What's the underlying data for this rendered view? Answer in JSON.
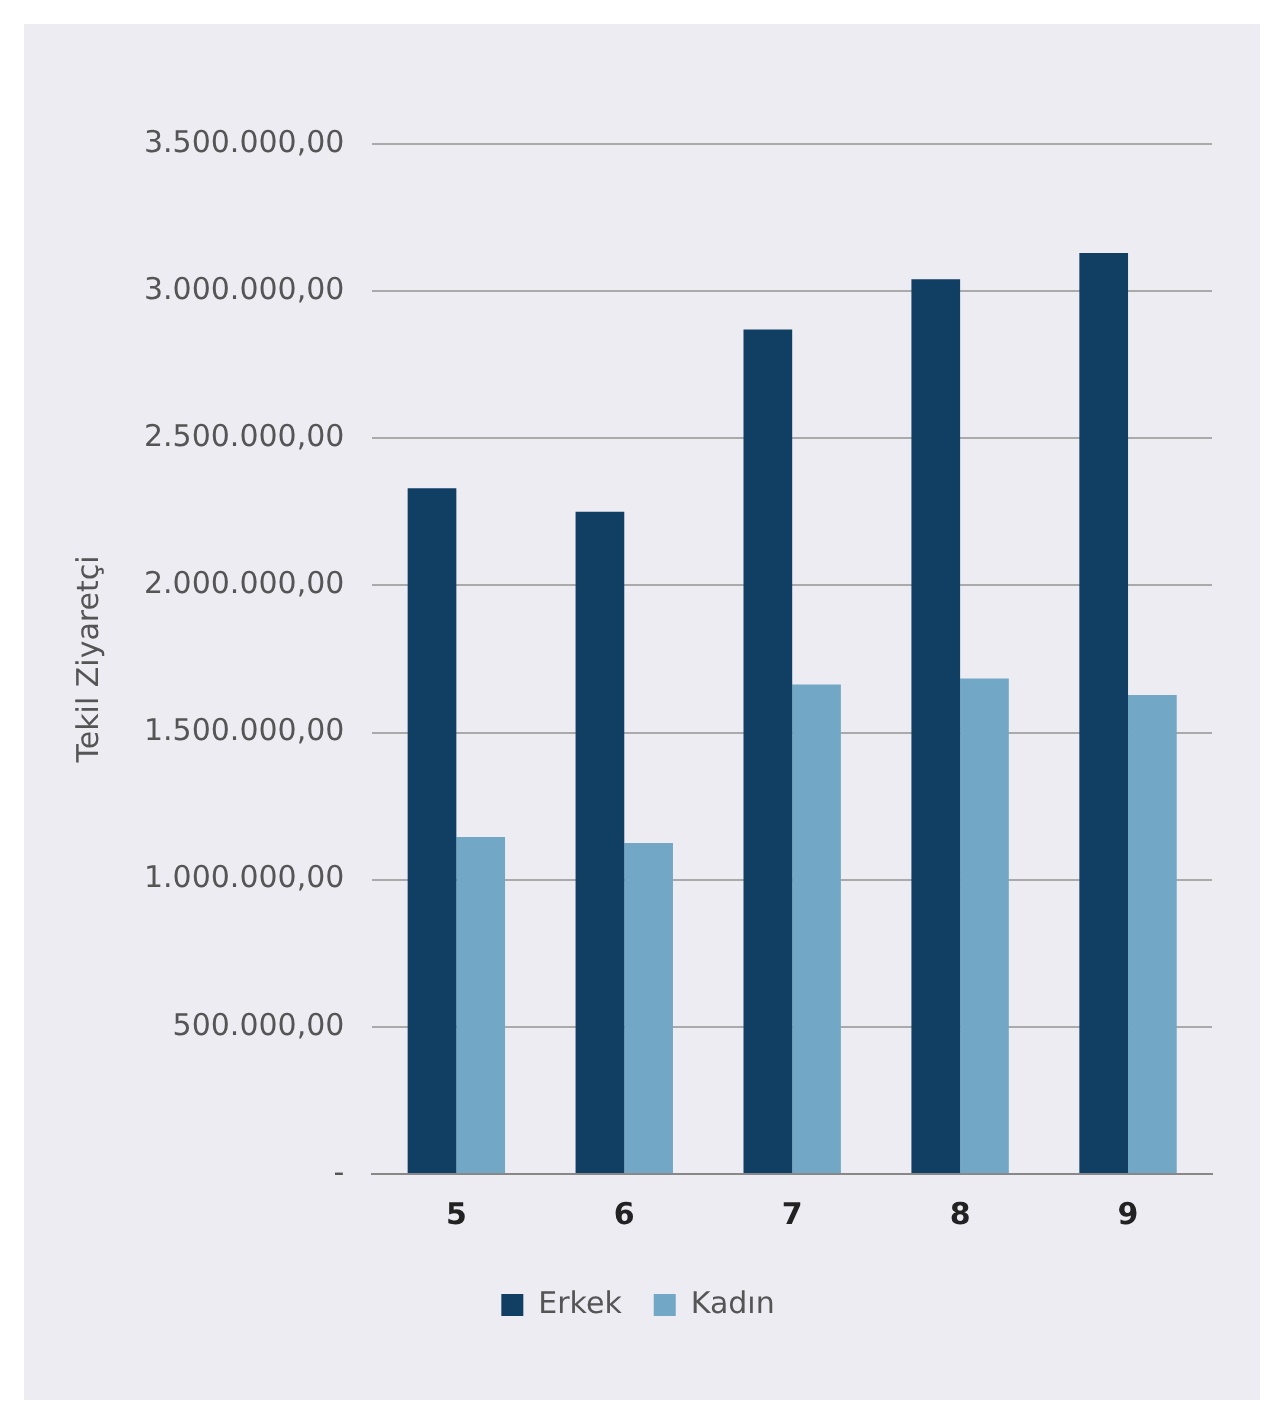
{
  "chart_data": {
    "type": "bar",
    "ylabel": "Tekil Ziyaretçi",
    "categories": [
      "5",
      "6",
      "7",
      "8",
      "9"
    ],
    "series": [
      {
        "name": "Erkek",
        "color": "#103f63",
        "values": [
          2330000,
          2250000,
          2870000,
          3040000,
          3130000
        ]
      },
      {
        "name": "Kadın",
        "color": "#72a8c5",
        "values": [
          1145000,
          1125000,
          1663000,
          1684000,
          1628000
        ]
      }
    ],
    "ylim": [
      0,
      3500000
    ],
    "yticks": [
      {
        "value": 0,
        "label": "-"
      },
      {
        "value": 500000,
        "label": "500.000,00"
      },
      {
        "value": 1000000,
        "label": "1.000.000,00"
      },
      {
        "value": 1500000,
        "label": "1.500.000,00"
      },
      {
        "value": 2000000,
        "label": "2.000.000,00"
      },
      {
        "value": 2500000,
        "label": "2.500.000,00"
      },
      {
        "value": 3000000,
        "label": "3.000.000,00"
      },
      {
        "value": 3500000,
        "label": "3.500.000,00"
      }
    ],
    "grid": "y",
    "legend": "bottom"
  }
}
